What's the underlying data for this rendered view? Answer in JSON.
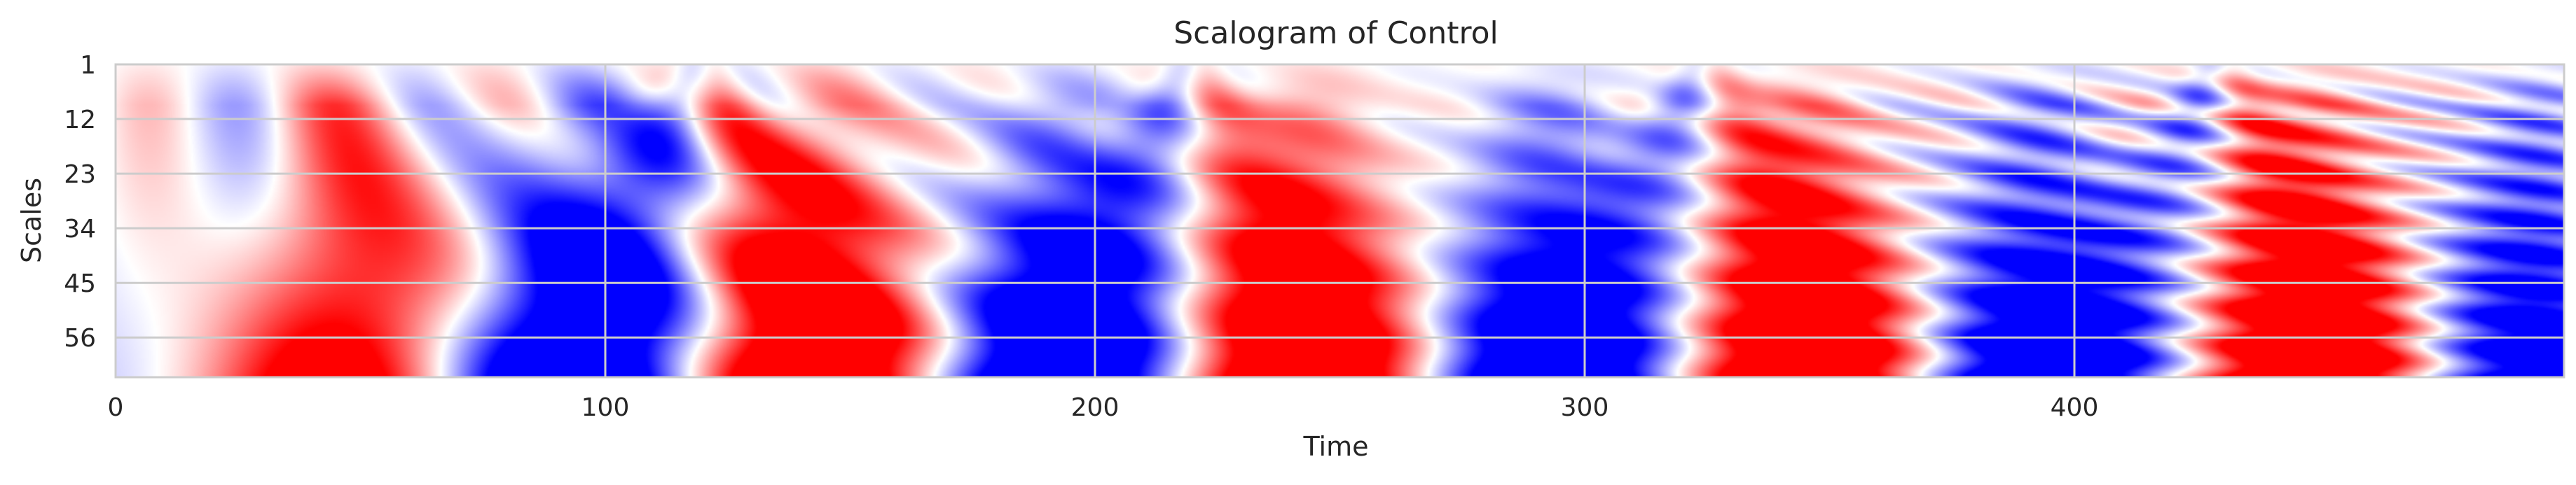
{
  "chart_data": {
    "type": "heatmap",
    "title": "Scalogram of Control",
    "xlabel": "Time",
    "ylabel": "Scales",
    "xlim": [
      0,
      500
    ],
    "ylim": [
      1,
      64
    ],
    "x_ticks": [
      0,
      100,
      200,
      300,
      400
    ],
    "x_tick_labels": [
      "0",
      "100",
      "200",
      "300",
      "400"
    ],
    "y_ticks": [
      1,
      12,
      23,
      34,
      45,
      56
    ],
    "y_tick_labels": [
      "1",
      "12",
      "23",
      "34",
      "45",
      "56"
    ],
    "y_direction": "scales increase downward",
    "grid": true,
    "colormap": "bwr",
    "colors": {
      "positive": "#ff0000",
      "zero": "#ffffff",
      "negative": "#0000ff",
      "grid": "#cccccc",
      "axis_text": "#262626"
    },
    "large_scale_signs": {
      "x_centers": [
        45,
        95,
        143,
        193,
        243,
        293,
        345,
        393,
        448,
        495
      ],
      "sign": [
        1,
        -1,
        1,
        -1,
        1,
        -1,
        1,
        -1,
        1,
        -1
      ]
    },
    "ridge_time_points": [
      120,
      220,
      325,
      430
    ]
  }
}
